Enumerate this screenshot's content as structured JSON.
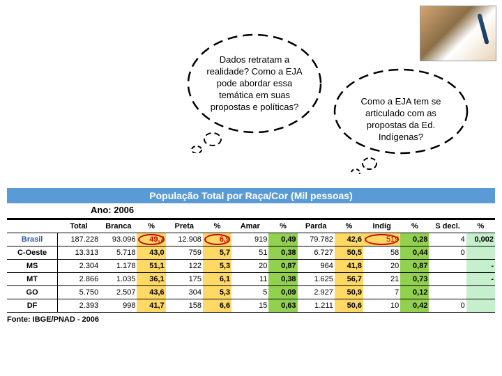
{
  "bubbles": {
    "b1": "Dados retratam a realidade? Como a EJA pode abordar essa temática em suas propostas e políticas?",
    "b2": "Como a EJA tem se articulado com as propostas da Ed. Indígenas?"
  },
  "table": {
    "title": "População Total por Raça/Cor (Mil pessoas)",
    "year": "Ano: 2006",
    "headers": [
      "",
      "Total",
      "Branca",
      "%",
      "Preta",
      "%",
      "Amar",
      "%",
      "Parda",
      "%",
      "Indíg",
      "%",
      "S decl.",
      "%"
    ],
    "rows": [
      {
        "label": "Brasil",
        "cls": "brasil",
        "cells": [
          "187.228",
          "93.096",
          "49,7",
          "12.908",
          "6,9",
          "919",
          "0,49",
          "79.782",
          "42,6",
          "519",
          "0,28",
          "4",
          "0,002"
        ],
        "hi": [
          2,
          4,
          9
        ]
      },
      {
        "label": "C-Oeste",
        "cells": [
          "13.313",
          "5.718",
          "43,0",
          "759",
          "5,7",
          "51",
          "0,38",
          "6.727",
          "50,5",
          "58",
          "0,44",
          "0",
          ""
        ]
      },
      {
        "label": "MS",
        "cells": [
          "2.304",
          "1.178",
          "51,1",
          "122",
          "5,3",
          "20",
          "0,87",
          "964",
          "41,8",
          "20",
          "0,87",
          "",
          "-"
        ]
      },
      {
        "label": "MT",
        "cells": [
          "2.866",
          "1.035",
          "36,1",
          "175",
          "6,1",
          "11",
          "0,38",
          "1.625",
          "56,7",
          "21",
          "0,73",
          "",
          "-"
        ]
      },
      {
        "label": "GO",
        "cells": [
          "5.750",
          "2.507",
          "43,6",
          "304",
          "5,3",
          "5",
          "0,09",
          "2.927",
          "50,9",
          "7",
          "0,12",
          "",
          ""
        ]
      },
      {
        "label": "DF",
        "cells": [
          "2.393",
          "998",
          "41,7",
          "158",
          "6,6",
          "15",
          "0,63",
          "1.211",
          "50,6",
          "10",
          "0,42",
          "0",
          ""
        ]
      }
    ],
    "source": "Fonte: IBGE/PNAD - 2006"
  },
  "style": {
    "pct_cols": [
      2,
      4,
      6,
      8,
      10,
      12
    ],
    "col_bg": {
      "2": "bg-yellow",
      "4": "bg-yellow",
      "6": "bg-green",
      "8": "bg-yellow",
      "10": "bg-green",
      "12": "bg-greenlight"
    }
  }
}
